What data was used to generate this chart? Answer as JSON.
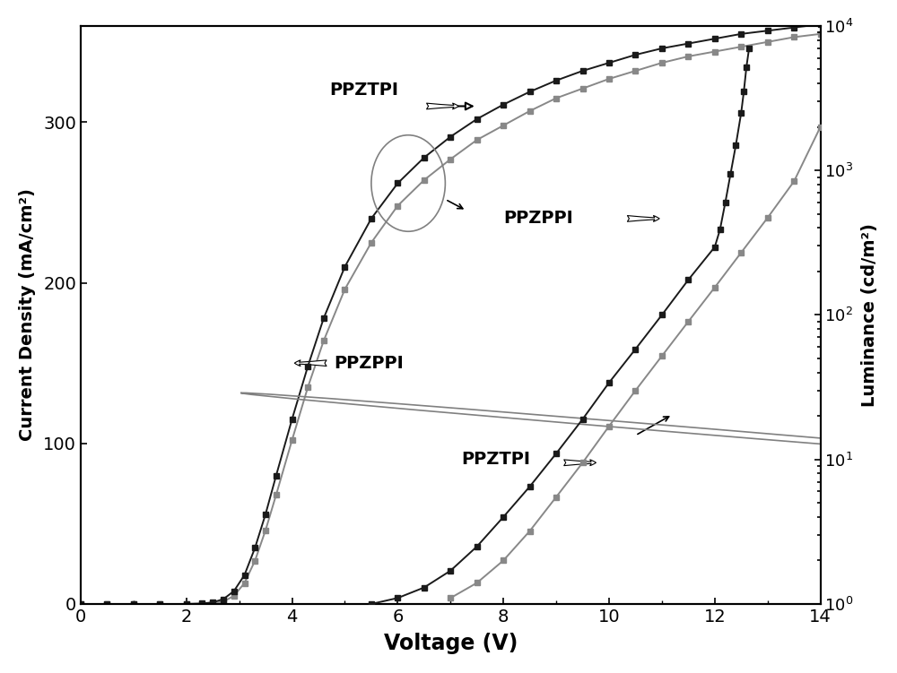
{
  "xlabel": "Voltage (V)",
  "ylabel_left": "Current Density (mA/cm²)",
  "ylabel_right": "Luminance (cd/m²)",
  "xlim": [
    0,
    14
  ],
  "ylim_left": [
    0,
    360
  ],
  "ylim_right": [
    1,
    10000
  ],
  "yticks_left": [
    0,
    100,
    200,
    300
  ],
  "xticks": [
    0,
    2,
    4,
    6,
    8,
    10,
    12,
    14
  ],
  "PPZTPI_J_V": [
    0,
    0.5,
    1.0,
    1.5,
    2.0,
    2.3,
    2.5,
    2.7,
    2.9,
    3.1,
    3.3,
    3.5,
    3.7,
    4.0,
    4.3,
    4.6,
    5.0,
    5.5,
    6.0,
    6.5,
    7.0,
    7.5,
    8.0,
    8.5,
    9.0,
    9.5,
    10.0,
    10.5,
    11.0,
    11.5,
    12.0,
    12.5,
    13.0,
    13.5,
    14.0
  ],
  "PPZTPI_J_I": [
    0,
    0,
    0,
    0,
    0,
    0.3,
    1.0,
    3,
    8,
    18,
    35,
    56,
    80,
    115,
    148,
    178,
    210,
    240,
    262,
    278,
    291,
    302,
    311,
    319,
    326,
    332,
    337,
    342,
    346,
    349,
    352,
    355,
    357,
    359,
    361
  ],
  "PPZPPI_J_V": [
    0,
    0.5,
    1.0,
    1.5,
    2.0,
    2.3,
    2.5,
    2.7,
    2.9,
    3.1,
    3.3,
    3.5,
    3.7,
    4.0,
    4.3,
    4.6,
    5.0,
    5.5,
    6.0,
    6.5,
    7.0,
    7.5,
    8.0,
    8.5,
    9.0,
    9.5,
    10.0,
    10.5,
    11.0,
    11.5,
    12.0,
    12.5,
    13.0,
    13.5,
    14.0
  ],
  "PPZPPI_J_I": [
    0,
    0,
    0,
    0,
    0,
    0.1,
    0.4,
    1.5,
    5,
    13,
    27,
    46,
    68,
    102,
    135,
    164,
    196,
    225,
    248,
    264,
    277,
    289,
    298,
    307,
    315,
    321,
    327,
    332,
    337,
    341,
    344,
    347,
    350,
    353,
    355
  ],
  "PPZTPI_L_V": [
    5.5,
    6.0,
    6.5,
    7.0,
    7.5,
    8.0,
    8.5,
    9.0,
    9.5,
    10.0,
    10.5,
    11.0,
    11.5,
    12.0,
    12.1,
    12.2,
    12.3,
    12.4,
    12.5,
    12.55,
    12.6,
    12.65
  ],
  "PPZTPI_L_I": [
    1.0,
    1.1,
    1.3,
    1.7,
    2.5,
    4.0,
    6.5,
    11,
    19,
    34,
    58,
    100,
    175,
    295,
    390,
    600,
    950,
    1500,
    2500,
    3500,
    5200,
    7000
  ],
  "PPZPPI_L_V": [
    7.0,
    7.5,
    8.0,
    8.5,
    9.0,
    9.5,
    10.0,
    10.5,
    11.0,
    11.5,
    12.0,
    12.5,
    13.0,
    13.5,
    14.0
  ],
  "PPZPPI_L_I": [
    1.1,
    1.4,
    2.0,
    3.2,
    5.5,
    9.5,
    17,
    30,
    52,
    90,
    155,
    270,
    470,
    840,
    2000
  ],
  "line_color_dark": "#1a1a1a",
  "line_color_gray": "#888888",
  "marker_size": 4,
  "linewidth": 1.4,
  "figsize": [
    10.0,
    7.51
  ],
  "dpi": 100
}
